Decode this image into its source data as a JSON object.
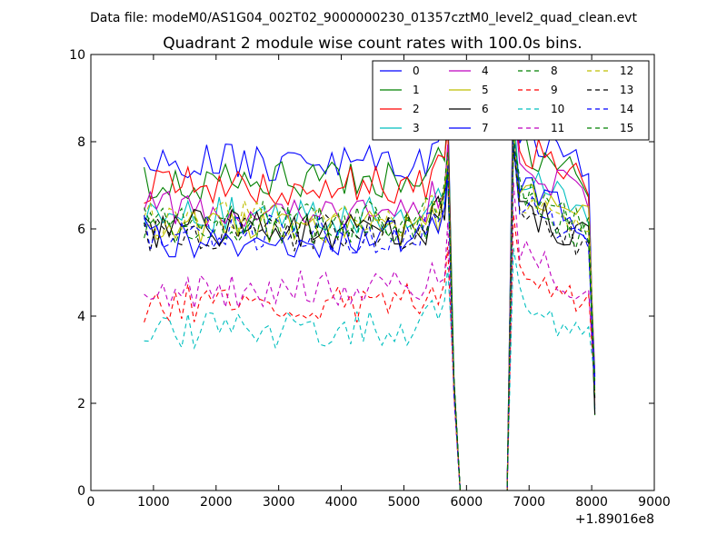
{
  "figure": {
    "suptitle": "Data file: modeM0/AS1G04_002T02_9000000230_01357cztM0_level2_quad_clean.evt"
  },
  "chart_data": {
    "type": "line",
    "title": "Quadrant 2 module wise count rates with 100.0s bins.",
    "xlabel": "",
    "ylabel": "",
    "x_offset_label": "+1.89016e8",
    "xlim": [
      0,
      9000
    ],
    "ylim": [
      0,
      10
    ],
    "xticks": [
      0,
      1000,
      2000,
      3000,
      4000,
      5000,
      6000,
      7000,
      8000,
      9000
    ],
    "yticks": [
      0,
      2,
      4,
      6,
      8,
      10
    ],
    "grid": false,
    "legend": {
      "placement": "top-right",
      "columns": 4
    },
    "series": [
      {
        "name": "0",
        "color": "#0000ff",
        "dash": "solid",
        "base1": 7.5,
        "base2": 8.3,
        "seed": 1
      },
      {
        "name": "1",
        "color": "#008000",
        "dash": "solid",
        "base1": 7.1,
        "base2": 8.0,
        "seed": 2
      },
      {
        "name": "2",
        "color": "#ff0000",
        "dash": "solid",
        "base1": 7.0,
        "base2": 8.0,
        "seed": 3
      },
      {
        "name": "3",
        "color": "#00bfbf",
        "dash": "solid",
        "base1": 6.3,
        "base2": 7.3,
        "seed": 4
      },
      {
        "name": "4",
        "color": "#bf00bf",
        "dash": "solid",
        "base1": 6.5,
        "base2": 7.6,
        "seed": 5
      },
      {
        "name": "5",
        "color": "#bfbf00",
        "dash": "solid",
        "base1": 6.0,
        "base2": 7.1,
        "seed": 6
      },
      {
        "name": "6",
        "color": "#000000",
        "dash": "solid",
        "base1": 6.0,
        "base2": 6.6,
        "seed": 7
      },
      {
        "name": "7",
        "color": "#0000ff",
        "dash": "solid",
        "base1": 5.8,
        "base2": 7.0,
        "seed": 8
      },
      {
        "name": "8",
        "color": "#008000",
        "dash": "dashed",
        "base1": 6.2,
        "base2": 7.0,
        "seed": 9
      },
      {
        "name": "9",
        "color": "#ff0000",
        "dash": "dashed",
        "base1": 4.3,
        "base2": 5.2,
        "seed": 10
      },
      {
        "name": "10",
        "color": "#00bfbf",
        "dash": "dashed",
        "base1": 3.7,
        "base2": 4.4,
        "seed": 11
      },
      {
        "name": "11",
        "color": "#bf00bf",
        "dash": "dashed",
        "base1": 4.6,
        "base2": 5.5,
        "seed": 12
      },
      {
        "name": "12",
        "color": "#bfbf00",
        "dash": "dashed",
        "base1": 6.2,
        "base2": 6.8,
        "seed": 13
      },
      {
        "name": "13",
        "color": "#000000",
        "dash": "dashed",
        "base1": 5.9,
        "base2": 6.5,
        "seed": 14
      },
      {
        "name": "14",
        "color": "#0000ff",
        "dash": "dashed",
        "base1": 5.9,
        "base2": 6.6,
        "seed": 15
      },
      {
        "name": "15",
        "color": "#008000",
        "dash": "dashed",
        "base1": 6.1,
        "base2": 6.7,
        "seed": 16
      }
    ],
    "time_segments": {
      "seg1": {
        "start": 850,
        "end": 5650,
        "step": 100
      },
      "drop": [
        5800,
        5900
      ],
      "zero_until": 6650,
      "seg2": {
        "start": 6750,
        "end": 7950,
        "step": 100
      },
      "end_x": 8050
    }
  }
}
